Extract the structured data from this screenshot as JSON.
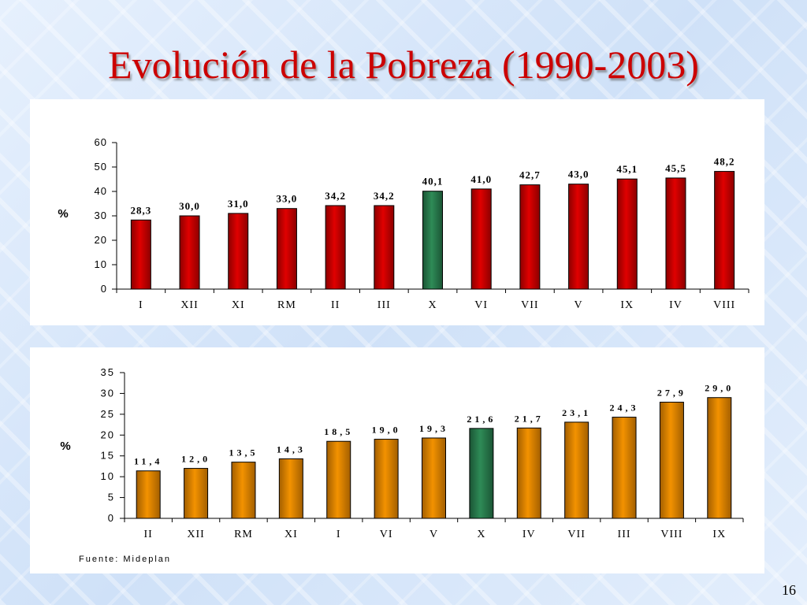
{
  "slide": {
    "title": "Evolución de la Pobreza (1990-2003)",
    "page_number": "16"
  },
  "colors": {
    "title": "#cc0000",
    "bar_red": "#e00000",
    "bar_orange": "#f39200",
    "bar_green": "#2e8b57",
    "panel_background": "#ffffff"
  },
  "chart_data": [
    {
      "type": "bar",
      "categories": [
        "I",
        "XII",
        "XI",
        "RM",
        "II",
        "III",
        "X",
        "VI",
        "VII",
        "V",
        "IX",
        "IV",
        "VIII"
      ],
      "values": [
        28.3,
        30.0,
        31.0,
        33.0,
        34.2,
        34.2,
        40.1,
        41.0,
        42.7,
        43.0,
        45.1,
        45.5,
        48.2
      ],
      "value_labels": [
        "28,3",
        "30,0",
        "31,0",
        "33,0",
        "34,2",
        "34,2",
        "40,1",
        "41,0",
        "42,7",
        "43,0",
        "45,1",
        "45,5",
        "48,2"
      ],
      "highlight_category": "X",
      "ylabel": "%",
      "ylim": [
        0,
        60
      ],
      "yticks": [
        0,
        10,
        20,
        30,
        40,
        50,
        60
      ],
      "bar_color": "red",
      "grid": false,
      "source": ""
    },
    {
      "type": "bar",
      "categories": [
        "II",
        "XII",
        "RM",
        "XI",
        "I",
        "VI",
        "V",
        "X",
        "IV",
        "VII",
        "III",
        "VIII",
        "IX"
      ],
      "values": [
        11.4,
        12.0,
        13.5,
        14.3,
        18.5,
        19.0,
        19.3,
        21.6,
        21.7,
        23.1,
        24.3,
        27.9,
        29.0
      ],
      "value_labels": [
        "11,4",
        "12,0",
        "13,5",
        "14,3",
        "18,5",
        "19,0",
        "19,3",
        "21,6",
        "21,7",
        "23,1",
        "24,3",
        "27,9",
        "29,0"
      ],
      "highlight_category": "X",
      "ylabel": "%",
      "ylim": [
        0,
        35
      ],
      "yticks": [
        0,
        5,
        10,
        15,
        20,
        25,
        30,
        35
      ],
      "bar_color": "orange",
      "grid": false,
      "source": "Fuente: Mideplan"
    }
  ]
}
